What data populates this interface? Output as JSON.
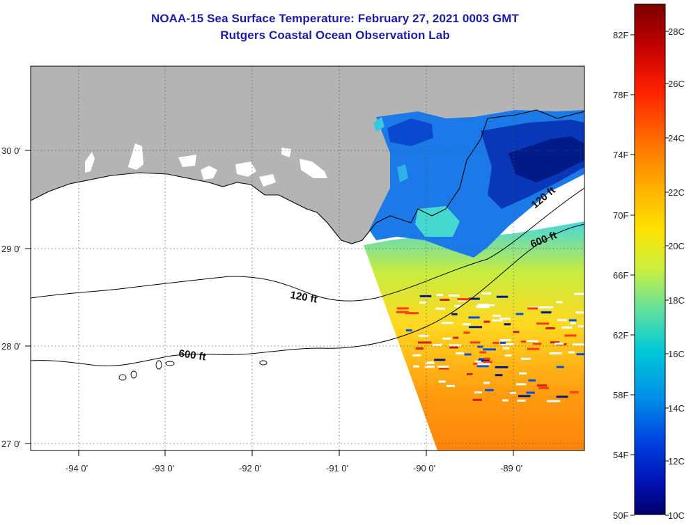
{
  "title": {
    "line1": "NOAA-15 Sea Surface Temperature:  February 27, 2021 0003 GMT",
    "line2": "Rutgers Coastal Ocean Observation Lab"
  },
  "axes": {
    "lon_labels": [
      "-94 0'",
      "-93 0'",
      "-92 0'",
      "-91 0'",
      "-90 0'",
      "-89 0'"
    ],
    "lat_labels": [
      "30 0'",
      "29 0'",
      "28 0'",
      "27 0'"
    ]
  },
  "contours": {
    "shelf_120": "120 ft",
    "shelf_600": "600 ft"
  },
  "colorbar": {
    "fahrenheit": [
      "82F",
      "78F",
      "74F",
      "70F",
      "66F",
      "62F",
      "58F",
      "54F",
      "50F"
    ],
    "celsius": [
      "28C",
      "26C",
      "24C",
      "22C",
      "20C",
      "18C",
      "16C",
      "14C",
      "12C",
      "10C"
    ],
    "colors": [
      "#7a0000",
      "#c00000",
      "#ff2000",
      "#ff7000",
      "#ffb000",
      "#ffe000",
      "#c8f040",
      "#60e0a0",
      "#00c8d8",
      "#0090e8",
      "#0040e0",
      "#0010b0",
      "#00006a"
    ]
  },
  "colors": {
    "land": "#b4b4b4",
    "title": "#1c1ca8"
  }
}
